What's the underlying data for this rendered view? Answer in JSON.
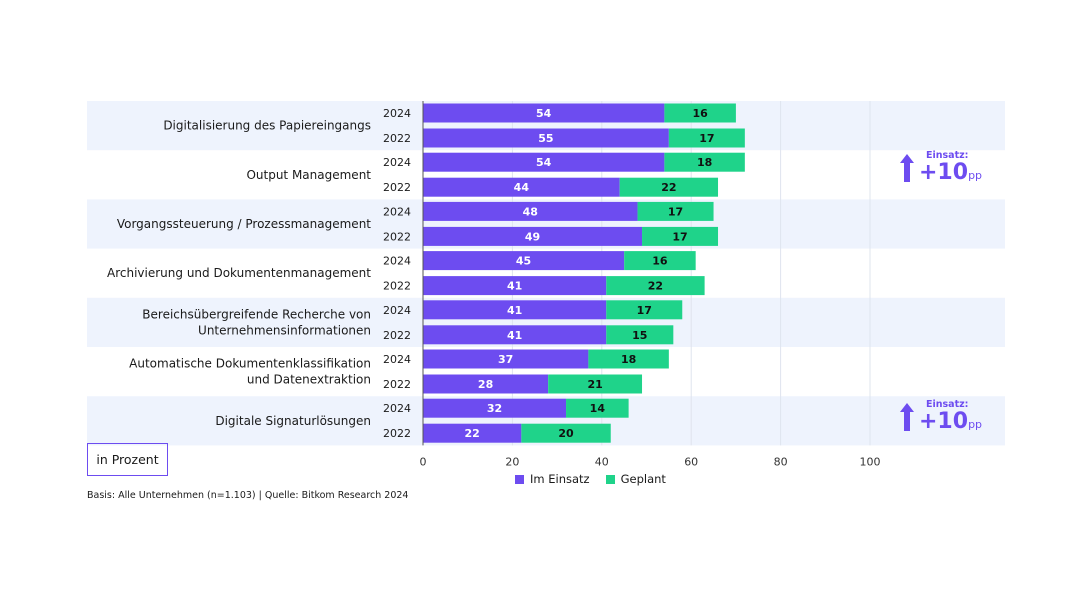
{
  "colors": {
    "in_use": "#6d4cf0",
    "planned": "#1fd38a",
    "band": "#eef3fd",
    "accent": "#6d4cf0"
  },
  "chart_data": {
    "type": "bar",
    "orientation": "horizontal",
    "stacked": true,
    "xlim": [
      0,
      100
    ],
    "xticks": [
      0,
      20,
      40,
      60,
      80,
      100
    ],
    "categories": [
      "Digitalisierung des Papiereingangs",
      "Output Management",
      "Vorgangssteuerung / Prozessmanagement",
      "Archivierung und Dokumentenmanagement",
      "Bereichsübergreifende Recherche von Unternehmensinformationen",
      "Automatische Dokumentenklassifikation und Datenextraktion",
      "Digitale Signaturlösungen"
    ],
    "category_lines": [
      [
        "Digitalisierung des Papiereingangs"
      ],
      [
        "Output Management"
      ],
      [
        "Vorgangssteuerung / Prozessmanagement"
      ],
      [
        "Archivierung und Dokumentenmanagement"
      ],
      [
        "Bereichsübergreifende Recherche von",
        "Unternehmensinformationen"
      ],
      [
        "Automatische Dokumentenklassifikation",
        "und Datenextraktion"
      ],
      [
        "Digitale Signaturlösungen"
      ]
    ],
    "years": [
      "2024",
      "2022"
    ],
    "series": [
      {
        "name": "Im Einsatz",
        "values": [
          [
            54,
            55
          ],
          [
            54,
            44
          ],
          [
            48,
            49
          ],
          [
            45,
            41
          ],
          [
            41,
            41
          ],
          [
            37,
            28
          ],
          [
            32,
            22
          ]
        ]
      },
      {
        "name": "Geplant",
        "values": [
          [
            16,
            17
          ],
          [
            18,
            22
          ],
          [
            17,
            17
          ],
          [
            16,
            22
          ],
          [
            17,
            15
          ],
          [
            18,
            21
          ],
          [
            14,
            20
          ]
        ]
      }
    ],
    "legend": "bottom-center",
    "grid": true
  },
  "unit_label": "in Prozent",
  "footnote": "Basis: Alle Unternehmen (n=1.103) | Quelle: Bitkom Research 2024",
  "callouts": [
    {
      "category_index": 1,
      "label": "Einsatz:",
      "value": "+10",
      "unit": "pp"
    },
    {
      "category_index": 6,
      "label": "Einsatz:",
      "value": "+10",
      "unit": "pp"
    }
  ]
}
